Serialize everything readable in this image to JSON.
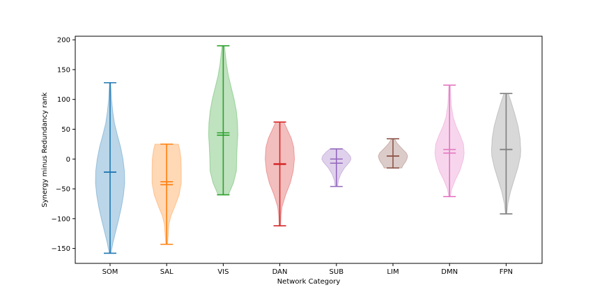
{
  "chart_data": {
    "type": "violin",
    "xlabel": "Network Category",
    "ylabel": "Synergy minus Redundancy rank",
    "ylim": [
      -175,
      206
    ],
    "yticks": [
      -150,
      -100,
      -50,
      0,
      50,
      100,
      150,
      200
    ],
    "ytick_labels": [
      "−150",
      "−100",
      "−50",
      "0",
      "50",
      "100",
      "150",
      "200"
    ],
    "categories": [
      "SOM",
      "SAL",
      "VIS",
      "DAN",
      "SUB",
      "LIM",
      "DMN",
      "FPN"
    ],
    "colors": [
      "#1f77b4",
      "#ff7f0e",
      "#2ca02c",
      "#d62728",
      "#9467bd",
      "#8c564b",
      "#e377c2",
      "#7f7f7f"
    ],
    "series": [
      {
        "name": "SOM",
        "min": -158,
        "max": 128,
        "mean": -22,
        "median": -22,
        "profile": [
          [
            -158,
            0.05
          ],
          [
            -140,
            0.2
          ],
          [
            -120,
            0.4
          ],
          [
            -100,
            0.6
          ],
          [
            -80,
            0.78
          ],
          [
            -60,
            0.92
          ],
          [
            -40,
            1.0
          ],
          [
            -20,
            0.98
          ],
          [
            0,
            0.88
          ],
          [
            20,
            0.72
          ],
          [
            40,
            0.5
          ],
          [
            60,
            0.3
          ],
          [
            80,
            0.18
          ],
          [
            100,
            0.1
          ],
          [
            128,
            0.04
          ]
        ]
      },
      {
        "name": "SAL",
        "min": -143,
        "max": 25,
        "mean": -38,
        "median": -43,
        "profile": [
          [
            -143,
            0.05
          ],
          [
            -130,
            0.1
          ],
          [
            -110,
            0.15
          ],
          [
            -95,
            0.3
          ],
          [
            -80,
            0.55
          ],
          [
            -60,
            0.85
          ],
          [
            -40,
            1.0
          ],
          [
            -20,
            1.0
          ],
          [
            0,
            0.98
          ],
          [
            15,
            0.9
          ],
          [
            25,
            0.8
          ]
        ]
      },
      {
        "name": "VIS",
        "min": -60,
        "max": 190,
        "mean": 44,
        "median": 40,
        "profile": [
          [
            -60,
            0.35
          ],
          [
            -40,
            0.7
          ],
          [
            -20,
            0.9
          ],
          [
            0,
            0.92
          ],
          [
            20,
            0.95
          ],
          [
            40,
            1.0
          ],
          [
            60,
            0.98
          ],
          [
            80,
            0.9
          ],
          [
            100,
            0.75
          ],
          [
            120,
            0.55
          ],
          [
            140,
            0.35
          ],
          [
            160,
            0.22
          ],
          [
            190,
            0.08
          ]
        ]
      },
      {
        "name": "DAN",
        "min": -112,
        "max": 62,
        "mean": -8,
        "median": -9,
        "profile": [
          [
            -112,
            0.05
          ],
          [
            -95,
            0.08
          ],
          [
            -80,
            0.15
          ],
          [
            -60,
            0.4
          ],
          [
            -40,
            0.72
          ],
          [
            -20,
            0.92
          ],
          [
            0,
            1.0
          ],
          [
            20,
            0.95
          ],
          [
            35,
            0.78
          ],
          [
            50,
            0.5
          ],
          [
            62,
            0.28
          ]
        ]
      },
      {
        "name": "SUB",
        "min": -46,
        "max": 17,
        "mean": -7,
        "median": 0,
        "profile": [
          [
            -46,
            0.08
          ],
          [
            -35,
            0.15
          ],
          [
            -25,
            0.3
          ],
          [
            -15,
            0.55
          ],
          [
            -5,
            0.9
          ],
          [
            0,
            1.0
          ],
          [
            5,
            0.95
          ],
          [
            12,
            0.7
          ],
          [
            17,
            0.45
          ]
        ]
      },
      {
        "name": "LIM",
        "min": -15,
        "max": 34,
        "mean": 5,
        "median": 5,
        "profile": [
          [
            -15,
            0.6
          ],
          [
            -10,
            0.7
          ],
          [
            -5,
            0.85
          ],
          [
            0,
            0.95
          ],
          [
            5,
            1.0
          ],
          [
            10,
            0.92
          ],
          [
            18,
            0.6
          ],
          [
            26,
            0.3
          ],
          [
            34,
            0.1
          ]
        ]
      },
      {
        "name": "DMN",
        "min": -63,
        "max": 124,
        "mean": 16,
        "median": 10,
        "profile": [
          [
            -63,
            0.05
          ],
          [
            -50,
            0.15
          ],
          [
            -35,
            0.4
          ],
          [
            -20,
            0.7
          ],
          [
            0,
            0.95
          ],
          [
            10,
            1.0
          ],
          [
            25,
            0.95
          ],
          [
            40,
            0.72
          ],
          [
            55,
            0.45
          ],
          [
            70,
            0.25
          ],
          [
            90,
            0.12
          ],
          [
            124,
            0.05
          ]
        ]
      },
      {
        "name": "FPN",
        "min": -92,
        "max": 110,
        "mean": 16,
        "median": 16,
        "profile": [
          [
            -92,
            0.05
          ],
          [
            -75,
            0.12
          ],
          [
            -55,
            0.3
          ],
          [
            -35,
            0.55
          ],
          [
            -15,
            0.8
          ],
          [
            5,
            0.98
          ],
          [
            15,
            1.0
          ],
          [
            35,
            0.95
          ],
          [
            55,
            0.82
          ],
          [
            75,
            0.6
          ],
          [
            95,
            0.35
          ],
          [
            110,
            0.15
          ]
        ]
      }
    ]
  }
}
